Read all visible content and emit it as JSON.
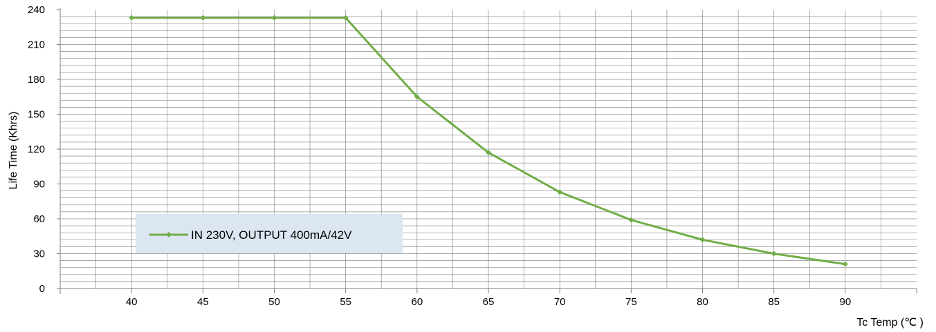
{
  "chart_data": {
    "type": "line",
    "title": "",
    "xlabel": "Tc Temp (℃ )",
    "ylabel": "Life Time (Khrs)",
    "x": [
      40,
      45,
      50,
      55,
      60,
      65,
      70,
      75,
      80,
      85,
      90
    ],
    "series": [
      {
        "name": "IN 230V, OUTPUT 400mA/42V",
        "values": [
          233,
          233,
          233,
          233,
          165,
          117,
          83,
          59,
          42,
          30,
          21
        ],
        "color": "#70ad47"
      }
    ],
    "xticks": [
      "40",
      "45",
      "50",
      "55",
      "60",
      "65",
      "70",
      "75",
      "80",
      "85",
      "90"
    ],
    "yticks": [
      "0",
      "30",
      "60",
      "90",
      "120",
      "150",
      "180",
      "210",
      "240"
    ],
    "ylim": [
      0,
      240
    ],
    "grid": true,
    "legend_position": "bottom-left",
    "colors": {
      "grid": "#8c8c8c",
      "legend_bg": "#dce6f2",
      "line": "#70ad47"
    }
  }
}
